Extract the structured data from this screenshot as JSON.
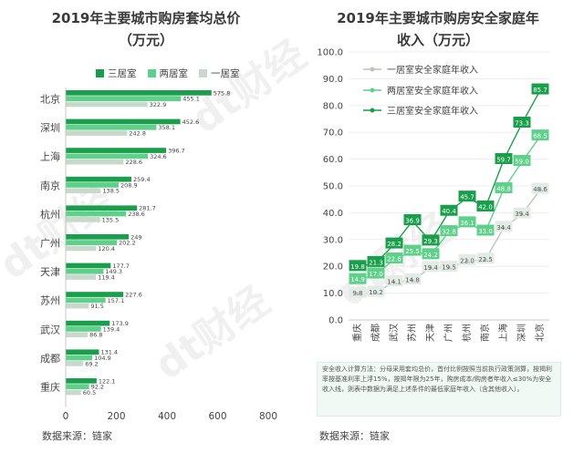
{
  "left": {
    "title_line1": "2019年主要城市购房套均总价",
    "title_line2": "（万元）",
    "source": "数据来源：链家",
    "legend": [
      "三居室",
      "两居室",
      "一居室"
    ]
  },
  "right": {
    "title_line1": "2019年主要城市购房安全家庭年",
    "title_line2": "收入（万元）",
    "source": "数据来源：链家",
    "note": "安全收入计算方法：分母采用套均总价，首付比例按照当前执行政策测算，按揭利率按基准利率上浮15%，按揭年限为25年，购房成本/购房者年收入≤30%为安全收入线，则表中数据为满足上述条件的最低家庭年收入（含其他收入）。"
  },
  "colors": {
    "three": "#1a9e4b",
    "two": "#5fd08a",
    "one": "#c9d8cd",
    "one_line": "#b8c5bb",
    "text": "#333333"
  },
  "chart_data": [
    {
      "type": "bar",
      "orientation": "horizontal",
      "title": "2019年主要城市购房套均总价（万元）",
      "categories": [
        "北京",
        "深圳",
        "上海",
        "南京",
        "杭州",
        "广州",
        "天津",
        "苏州",
        "武汉",
        "成都",
        "重庆"
      ],
      "series": [
        {
          "name": "三居室",
          "values": [
            575.8,
            452.6,
            396.7,
            259.4,
            281.7,
            249,
            177.7,
            227.6,
            173.9,
            131.4,
            122.1
          ]
        },
        {
          "name": "两居室",
          "values": [
            455.1,
            358.1,
            324.6,
            208.9,
            238.6,
            202.2,
            149.3,
            157.1,
            139.4,
            104.9,
            92.2
          ]
        },
        {
          "name": "一居室",
          "values": [
            322.9,
            242.8,
            228.6,
            138.5,
            135.5,
            120.4,
            119.4,
            91.5,
            86.8,
            69.2,
            60.5
          ]
        }
      ],
      "xlim": [
        0,
        800
      ],
      "xticks": [
        0,
        200,
        400,
        600,
        800
      ],
      "legend": "top"
    },
    {
      "type": "line",
      "title": "2019年主要城市购房安全家庭年收入（万元）",
      "categories": [
        "重庆",
        "成都",
        "武汉",
        "苏州",
        "天津",
        "广州",
        "杭州",
        "南京",
        "上海",
        "深圳",
        "北京"
      ],
      "series": [
        {
          "name": "一居室安全家庭年收入",
          "values": [
            9.8,
            10.2,
            14.1,
            14.8,
            19.4,
            19.5,
            22.0,
            22.5,
            34.4,
            39.4,
            48.6
          ]
        },
        {
          "name": "两居室安全家庭年收入",
          "values": [
            14.9,
            17.0,
            22.6,
            25.5,
            24.2,
            32.8,
            36.1,
            33.0,
            48.8,
            59.0,
            68.5
          ]
        },
        {
          "name": "三居室安全家庭年收入",
          "values": [
            19.8,
            21.3,
            28.2,
            36.9,
            29.3,
            40.4,
            45.7,
            42.0,
            59.7,
            73.3,
            85.7
          ]
        }
      ],
      "ylim": [
        0,
        100
      ],
      "yticks": [
        "0.0",
        "10.0",
        "20.0",
        "30.0",
        "40.0",
        "50.0",
        "60.0",
        "70.0",
        "80.0",
        "90.0",
        "100.0"
      ],
      "grid": true,
      "legend": "top-left"
    }
  ]
}
